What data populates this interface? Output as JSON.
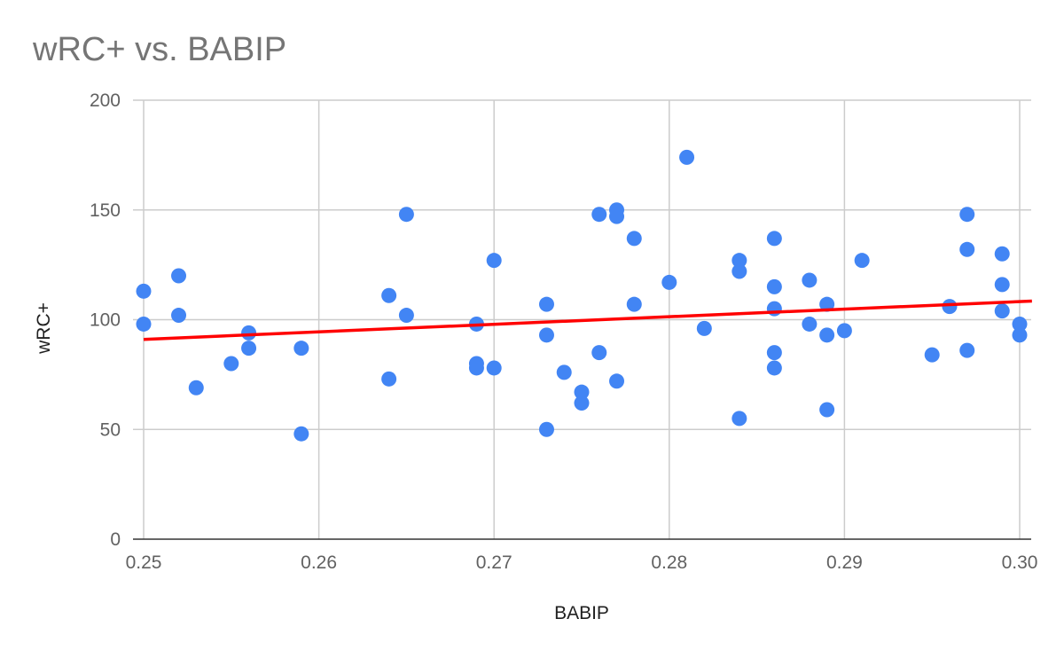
{
  "chart_data": {
    "type": "scatter",
    "title": "wRC+ vs. BABIP",
    "xlabel": "BABIP",
    "ylabel": "wRC+",
    "xlim": [
      0.25,
      0.3
    ],
    "ylim": [
      0,
      200
    ],
    "x_ticks": [
      "0.25",
      "0.26",
      "0.27",
      "0.28",
      "0.29",
      "0.30"
    ],
    "y_ticks": [
      "0",
      "50",
      "100",
      "150",
      "200"
    ],
    "grid": true,
    "legend": "none",
    "colors": {
      "points": "#4285f4",
      "trendline": "#ff0000"
    },
    "trendline": {
      "type": "linear",
      "from": [
        0.25,
        91
      ],
      "to": [
        0.3007,
        108.5
      ]
    },
    "points": [
      [
        0.25,
        113
      ],
      [
        0.25,
        98
      ],
      [
        0.252,
        120
      ],
      [
        0.252,
        102
      ],
      [
        0.253,
        69
      ],
      [
        0.255,
        80
      ],
      [
        0.256,
        94
      ],
      [
        0.256,
        87
      ],
      [
        0.259,
        87
      ],
      [
        0.259,
        48
      ],
      [
        0.264,
        111
      ],
      [
        0.264,
        73
      ],
      [
        0.265,
        148
      ],
      [
        0.265,
        102
      ],
      [
        0.269,
        98
      ],
      [
        0.269,
        80
      ],
      [
        0.269,
        78
      ],
      [
        0.27,
        127
      ],
      [
        0.27,
        78
      ],
      [
        0.273,
        107
      ],
      [
        0.273,
        93
      ],
      [
        0.273,
        50
      ],
      [
        0.274,
        76
      ],
      [
        0.275,
        67
      ],
      [
        0.275,
        62
      ],
      [
        0.276,
        148
      ],
      [
        0.276,
        85
      ],
      [
        0.277,
        150
      ],
      [
        0.277,
        147
      ],
      [
        0.277,
        72
      ],
      [
        0.278,
        137
      ],
      [
        0.278,
        107
      ],
      [
        0.28,
        117
      ],
      [
        0.281,
        174
      ],
      [
        0.282,
        96
      ],
      [
        0.284,
        127
      ],
      [
        0.284,
        122
      ],
      [
        0.284,
        55
      ],
      [
        0.286,
        137
      ],
      [
        0.286,
        115
      ],
      [
        0.286,
        105
      ],
      [
        0.286,
        85
      ],
      [
        0.286,
        78
      ],
      [
        0.288,
        118
      ],
      [
        0.288,
        98
      ],
      [
        0.289,
        107
      ],
      [
        0.289,
        93
      ],
      [
        0.289,
        59
      ],
      [
        0.29,
        95
      ],
      [
        0.291,
        127
      ],
      [
        0.295,
        84
      ],
      [
        0.296,
        106
      ],
      [
        0.297,
        148
      ],
      [
        0.297,
        132
      ],
      [
        0.297,
        86
      ],
      [
        0.299,
        130
      ],
      [
        0.299,
        116
      ],
      [
        0.299,
        104
      ],
      [
        0.3,
        98
      ],
      [
        0.3,
        93
      ]
    ]
  }
}
